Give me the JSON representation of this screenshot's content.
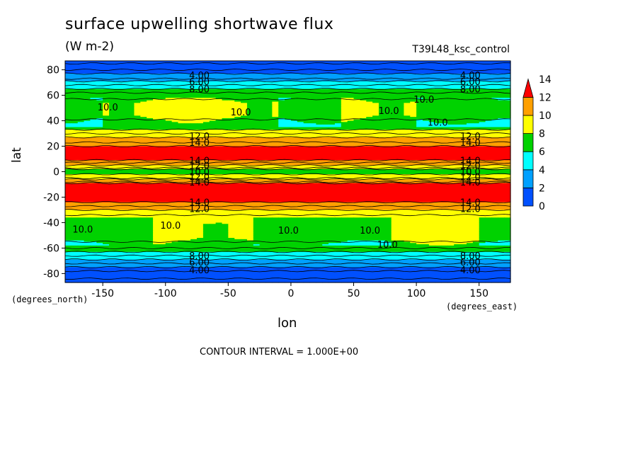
{
  "chart_data": {
    "type": "heatmap",
    "title": "surface upwelling shortwave flux",
    "units": "(W m-2)",
    "run_label": "T39L48_ksc_control",
    "xlabel": "lon",
    "ylabel": "lat",
    "x_unit": "(degrees_east)",
    "y_unit": "(degrees_north)",
    "xlim": [
      -180,
      175
    ],
    "ylim": [
      -87,
      87
    ],
    "x_ticks": [
      -150,
      -100,
      -50,
      0,
      50,
      100,
      150
    ],
    "y_ticks": [
      -80,
      -60,
      -40,
      -20,
      0,
      20,
      40,
      60,
      80
    ],
    "contour_interval": "CONTOUR INTERVAL = 1.000E+00",
    "colorbar": {
      "levels": [
        0,
        2,
        4,
        6,
        8,
        10,
        12,
        14
      ],
      "colors": [
        "#0050ff",
        "#00a0ff",
        "#00ffff",
        "#00d200",
        "#ffff00",
        "#ffa000",
        "#ff0000"
      ]
    },
    "lat_profile": [
      {
        "lat": 87,
        "v": 1.5
      },
      {
        "lat": 80,
        "v": 3
      },
      {
        "lat": 73,
        "v": 5
      },
      {
        "lat": 68,
        "v": 7
      },
      {
        "lat": 62,
        "v": 9
      },
      {
        "lat": 54,
        "v": 10.5
      },
      {
        "lat": 44,
        "v": 10.5
      },
      {
        "lat": 36,
        "v": 9
      },
      {
        "lat": 30,
        "v": 11
      },
      {
        "lat": 25,
        "v": 12.5
      },
      {
        "lat": 18,
        "v": 14.5
      },
      {
        "lat": 10,
        "v": 14.5
      },
      {
        "lat": 5,
        "v": 12
      },
      {
        "lat": 0,
        "v": 9
      },
      {
        "lat": -5,
        "v": 11
      },
      {
        "lat": -10,
        "v": 14.5
      },
      {
        "lat": -22,
        "v": 14.5
      },
      {
        "lat": -28,
        "v": 12.5
      },
      {
        "lat": -34,
        "v": 11
      },
      {
        "lat": -42,
        "v": 10.5
      },
      {
        "lat": -52,
        "v": 10.5
      },
      {
        "lat": -60,
        "v": 9
      },
      {
        "lat": -66,
        "v": 7
      },
      {
        "lat": -72,
        "v": 5
      },
      {
        "lat": -78,
        "v": 3
      },
      {
        "lat": -87,
        "v": 1.5
      }
    ],
    "contour_labels": [
      {
        "lon": -146,
        "lat": 51,
        "text": "10.0"
      },
      {
        "lon": -40,
        "lat": 47,
        "text": "10.0"
      },
      {
        "lon": 78,
        "lat": 48,
        "text": "10.0"
      },
      {
        "lon": 106,
        "lat": 57,
        "text": "10.0"
      },
      {
        "lon": 117,
        "lat": 39,
        "text": "10.0"
      },
      {
        "lon": -166,
        "lat": -45,
        "text": "10.0"
      },
      {
        "lon": -96,
        "lat": -42,
        "text": "10.0"
      },
      {
        "lon": -2,
        "lat": -46,
        "text": "10.0"
      },
      {
        "lon": 63,
        "lat": -46,
        "text": "10.0"
      },
      {
        "lon": 77,
        "lat": -57,
        "text": "10.0"
      },
      {
        "lon": -73,
        "lat": 76,
        "text": "4.00"
      },
      {
        "lon": -73,
        "lat": 71,
        "text": "6.00"
      },
      {
        "lon": -73,
        "lat": 65,
        "text": "8.00"
      },
      {
        "lon": 143,
        "lat": 76,
        "text": "4.00"
      },
      {
        "lon": 143,
        "lat": 71,
        "text": "6.00"
      },
      {
        "lon": 143,
        "lat": 65,
        "text": "8.00"
      },
      {
        "lon": -73,
        "lat": 28,
        "text": "12.0"
      },
      {
        "lon": -73,
        "lat": 23,
        "text": "14.0"
      },
      {
        "lon": 143,
        "lat": 28,
        "text": "12.0"
      },
      {
        "lon": 143,
        "lat": 23,
        "text": "14.0"
      },
      {
        "lon": -73,
        "lat": 9,
        "text": "14.0"
      },
      {
        "lon": -73,
        "lat": 5,
        "text": "12.0"
      },
      {
        "lon": -73,
        "lat": 0,
        "text": "10.0"
      },
      {
        "lon": -73,
        "lat": -4,
        "text": "12.0"
      },
      {
        "lon": -73,
        "lat": -8,
        "text": "14.0"
      },
      {
        "lon": 143,
        "lat": 9,
        "text": "14.0"
      },
      {
        "lon": 143,
        "lat": 5,
        "text": "12.0"
      },
      {
        "lon": 143,
        "lat": 0,
        "text": "10.0"
      },
      {
        "lon": 143,
        "lat": -4,
        "text": "12.0"
      },
      {
        "lon": 143,
        "lat": -8,
        "text": "14.0"
      },
      {
        "lon": -73,
        "lat": -24,
        "text": "14.0"
      },
      {
        "lon": -73,
        "lat": -29,
        "text": "12.0"
      },
      {
        "lon": 143,
        "lat": -24,
        "text": "14.0"
      },
      {
        "lon": 143,
        "lat": -29,
        "text": "12.0"
      },
      {
        "lon": -73,
        "lat": -66,
        "text": "8.00"
      },
      {
        "lon": -73,
        "lat": -71,
        "text": "6.00"
      },
      {
        "lon": -73,
        "lat": -77,
        "text": "4.00"
      },
      {
        "lon": 143,
        "lat": -66,
        "text": "8.00"
      },
      {
        "lon": 143,
        "lat": -71,
        "text": "6.00"
      },
      {
        "lon": 143,
        "lat": -77,
        "text": "4.00"
      }
    ]
  }
}
